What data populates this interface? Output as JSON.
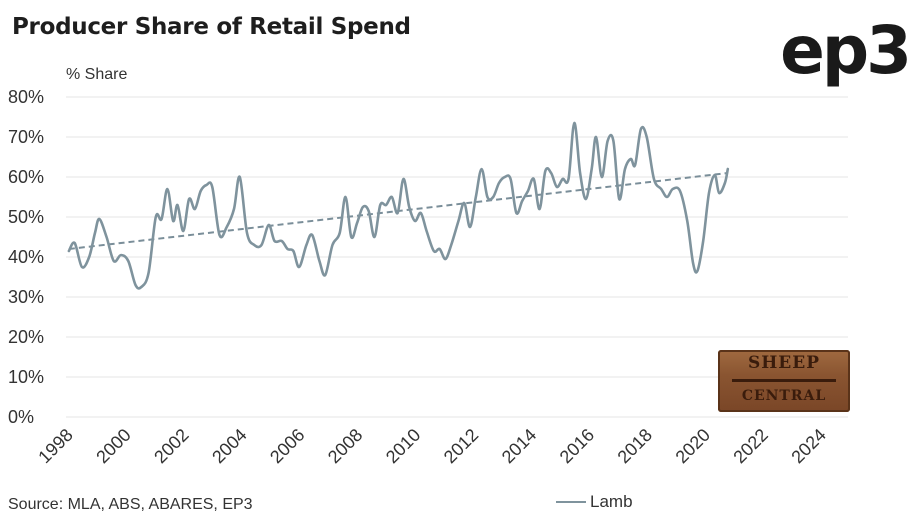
{
  "title": "Producer Share of Retail Spend",
  "logo_text": "ep3",
  "unit_label": "% Share",
  "source": "Source: MLA, ABS, ABARES, EP3",
  "badge": {
    "line1": "SHEEP",
    "line2": "CENTRAL"
  },
  "colors": {
    "series": "#7f939d",
    "trend": "#7a8e99",
    "grid": "#e6e6e6",
    "text": "#333333"
  },
  "chart_data": {
    "type": "line",
    "title": "Producer Share of Retail Spend",
    "ylabel": "% Share",
    "xlabel": "",
    "ylim": [
      0,
      80
    ],
    "xlim": [
      1998,
      2025
    ],
    "y_ticks": [
      "0%",
      "10%",
      "20%",
      "30%",
      "40%",
      "50%",
      "60%",
      "70%",
      "80%"
    ],
    "x_ticks": [
      "1998",
      "2000",
      "2002",
      "2004",
      "2006",
      "2008",
      "2010",
      "2012",
      "2014",
      "2016",
      "2018",
      "2020",
      "2022",
      "2024"
    ],
    "grid": true,
    "legend_position": "bottom",
    "series": [
      {
        "name": "Lamb",
        "points": [
          [
            1998.1,
            41.5
          ],
          [
            1998.3,
            43.5
          ],
          [
            1998.55,
            37.5
          ],
          [
            1998.8,
            40
          ],
          [
            1999.0,
            46
          ],
          [
            1999.15,
            49.5
          ],
          [
            1999.4,
            45
          ],
          [
            1999.65,
            39
          ],
          [
            1999.9,
            40.5
          ],
          [
            2000.15,
            39
          ],
          [
            2000.4,
            33
          ],
          [
            2000.6,
            32.5
          ],
          [
            2000.85,
            36
          ],
          [
            2001.1,
            50
          ],
          [
            2001.3,
            49.5
          ],
          [
            2001.5,
            57
          ],
          [
            2001.7,
            49
          ],
          [
            2001.85,
            53
          ],
          [
            2002.05,
            46.5
          ],
          [
            2002.25,
            54.5
          ],
          [
            2002.45,
            52
          ],
          [
            2002.65,
            56.5
          ],
          [
            2002.85,
            58
          ],
          [
            2003.05,
            57.5
          ],
          [
            2003.3,
            45.5
          ],
          [
            2003.55,
            47.5
          ],
          [
            2003.8,
            52
          ],
          [
            2004.0,
            60
          ],
          [
            2004.25,
            46
          ],
          [
            2004.5,
            43
          ],
          [
            2004.75,
            43
          ],
          [
            2005.0,
            48
          ],
          [
            2005.2,
            44
          ],
          [
            2005.45,
            44
          ],
          [
            2005.65,
            42
          ],
          [
            2005.85,
            41.5
          ],
          [
            2006.05,
            37.5
          ],
          [
            2006.3,
            43
          ],
          [
            2006.5,
            45.5
          ],
          [
            2006.75,
            39
          ],
          [
            2006.95,
            35.5
          ],
          [
            2007.2,
            43
          ],
          [
            2007.45,
            46
          ],
          [
            2007.65,
            55
          ],
          [
            2007.85,
            45
          ],
          [
            2008.05,
            48.5
          ],
          [
            2008.25,
            52.5
          ],
          [
            2008.45,
            51.5
          ],
          [
            2008.65,
            45
          ],
          [
            2008.85,
            53
          ],
          [
            2009.05,
            53
          ],
          [
            2009.25,
            55
          ],
          [
            2009.45,
            51
          ],
          [
            2009.65,
            59.5
          ],
          [
            2009.85,
            52.5
          ],
          [
            2010.05,
            49
          ],
          [
            2010.25,
            51
          ],
          [
            2010.45,
            46.5
          ],
          [
            2010.7,
            41.5
          ],
          [
            2010.9,
            42
          ],
          [
            2011.1,
            39.5
          ],
          [
            2011.3,
            43
          ],
          [
            2011.55,
            49
          ],
          [
            2011.75,
            53.5
          ],
          [
            2011.95,
            47.5
          ],
          [
            2012.15,
            55
          ],
          [
            2012.35,
            62
          ],
          [
            2012.55,
            55
          ],
          [
            2012.75,
            55
          ],
          [
            2012.95,
            58.5
          ],
          [
            2013.15,
            60
          ],
          [
            2013.35,
            59.5
          ],
          [
            2013.55,
            51
          ],
          [
            2013.75,
            54
          ],
          [
            2013.95,
            56.5
          ],
          [
            2014.15,
            59.5
          ],
          [
            2014.35,
            52
          ],
          [
            2014.55,
            61.5
          ],
          [
            2014.75,
            61
          ],
          [
            2014.95,
            57.5
          ],
          [
            2015.15,
            59.5
          ],
          [
            2015.35,
            59.5
          ],
          [
            2015.55,
            73.5
          ],
          [
            2015.75,
            61
          ],
          [
            2015.95,
            54.5
          ],
          [
            2016.15,
            62
          ],
          [
            2016.3,
            70
          ],
          [
            2016.5,
            60
          ],
          [
            2016.7,
            69
          ],
          [
            2016.9,
            69
          ],
          [
            2017.1,
            54.5
          ],
          [
            2017.3,
            62
          ],
          [
            2017.5,
            64.5
          ],
          [
            2017.65,
            63
          ],
          [
            2017.85,
            72
          ],
          [
            2018.05,
            70
          ],
          [
            2018.3,
            59.5
          ],
          [
            2018.55,
            57
          ],
          [
            2018.75,
            55
          ],
          [
            2018.95,
            57
          ],
          [
            2019.2,
            56.5
          ],
          [
            2019.45,
            49
          ],
          [
            2019.65,
            38.5
          ],
          [
            2019.8,
            36.5
          ],
          [
            2020.0,
            44
          ],
          [
            2020.2,
            56
          ],
          [
            2020.4,
            60.5
          ],
          [
            2020.55,
            56
          ],
          [
            2020.75,
            58.5
          ],
          [
            2020.85,
            62
          ]
        ]
      }
    ],
    "trendline": {
      "start": [
        1998.1,
        42
      ],
      "end": [
        2020.85,
        61
      ]
    }
  }
}
